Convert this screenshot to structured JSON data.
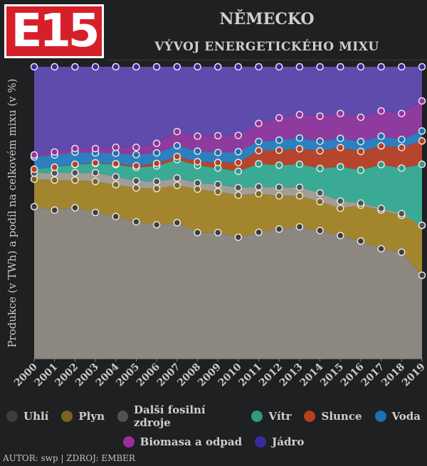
{
  "logo": {
    "text": "E15",
    "color": "#d5202a"
  },
  "header": {
    "title": "NĚMECKO",
    "subtitle": "VÝVOJ ENERGETICKÉHO MIXU"
  },
  "footer": {
    "text": "AUTOR: swp | ZDROJ: EMBER"
  },
  "chart_data": {
    "type": "area",
    "stacked": true,
    "normalized": true,
    "ylabel": "Produkce (v TWh) a podíl na celkovém mixu (v %)",
    "ylim": [
      0,
      100
    ],
    "x": [
      "2000",
      "2001",
      "2002",
      "2003",
      "2004",
      "2005",
      "2006",
      "2007",
      "2008",
      "2009",
      "2010",
      "2011",
      "2012",
      "2013",
      "2014",
      "2015",
      "2016",
      "2017",
      "2018",
      "2019"
    ],
    "grid": false,
    "legend_position": "bottom",
    "series": [
      {
        "name": "Uhlí",
        "color": "#8c8780",
        "dot": "#3d3d3d",
        "values": [
          52.1,
          50.9,
          51.7,
          50.1,
          48.7,
          46.9,
          45.9,
          46.6,
          43.2,
          43.2,
          41.6,
          43.3,
          44.4,
          45.2,
          43.9,
          42.2,
          40.3,
          37.7,
          36.5,
          28.6
        ]
      },
      {
        "name": "Plyn",
        "color": "#a3852d",
        "dot": "#7c6420",
        "values": [
          9.4,
          10.3,
          9.5,
          10.6,
          10.9,
          11.6,
          12.4,
          12.8,
          14.9,
          14.0,
          14.4,
          13.2,
          11.4,
          10.6,
          9.9,
          9.3,
          12.3,
          13.2,
          12.6,
          17.1
        ]
      },
      {
        "name": "Další fosilní zdroje",
        "color": "#a19d97",
        "dot": "#4f5153",
        "values": [
          2.1,
          2.4,
          2.5,
          3.0,
          2.7,
          2.4,
          2.4,
          2.5,
          2.1,
          2.5,
          2.6,
          2.4,
          2.9,
          2.9,
          3.0,
          2.5,
          0.7,
          0.6,
          0.6,
          0.0
        ]
      },
      {
        "name": "Vítr",
        "color": "#3aaa94",
        "dot": "#2b9b85",
        "values": [
          1.3,
          2.0,
          2.8,
          3.2,
          4.2,
          4.6,
          5.3,
          6.3,
          6.0,
          5.6,
          5.6,
          7.9,
          7.6,
          7.9,
          8.4,
          11.8,
          11.3,
          15.0,
          15.6,
          20.9
        ]
      },
      {
        "name": "Slunce",
        "color": "#b5452c",
        "dot": "#b5401f",
        "values": [
          0.0,
          0.0,
          0.1,
          0.2,
          0.3,
          0.6,
          0.9,
          1.1,
          1.3,
          1.9,
          3.0,
          4.5,
          5.1,
          5.3,
          6.0,
          6.5,
          6.4,
          6.4,
          7.0,
          8.0
        ]
      },
      {
        "name": "Voda",
        "color": "#2d7fbf",
        "dot": "#1c6fb0",
        "values": [
          4.2,
          4.2,
          4.2,
          3.4,
          3.6,
          3.8,
          3.6,
          3.7,
          3.6,
          3.4,
          3.7,
          3.1,
          3.5,
          3.7,
          3.3,
          3.2,
          3.4,
          3.3,
          2.8,
          3.4
        ]
      },
      {
        "name": "Biomasa a odpad",
        "color": "#8f3a9e",
        "dot": "#9b2d9f",
        "values": [
          0.7,
          1.0,
          1.2,
          1.5,
          2.0,
          2.5,
          3.3,
          4.8,
          5.1,
          5.8,
          5.6,
          6.2,
          7.6,
          8.0,
          8.6,
          8.5,
          8.3,
          8.7,
          8.9,
          10.3
        ]
      },
      {
        "name": "Jádro",
        "color": "#5e4bac",
        "dot": "#3a2a9f",
        "values": [
          30.2,
          29.2,
          28.0,
          28.0,
          27.6,
          27.6,
          26.2,
          22.2,
          23.8,
          23.6,
          23.5,
          19.4,
          17.5,
          16.4,
          16.9,
          16.0,
          17.3,
          15.1,
          16.0,
          11.7
        ]
      }
    ]
  }
}
